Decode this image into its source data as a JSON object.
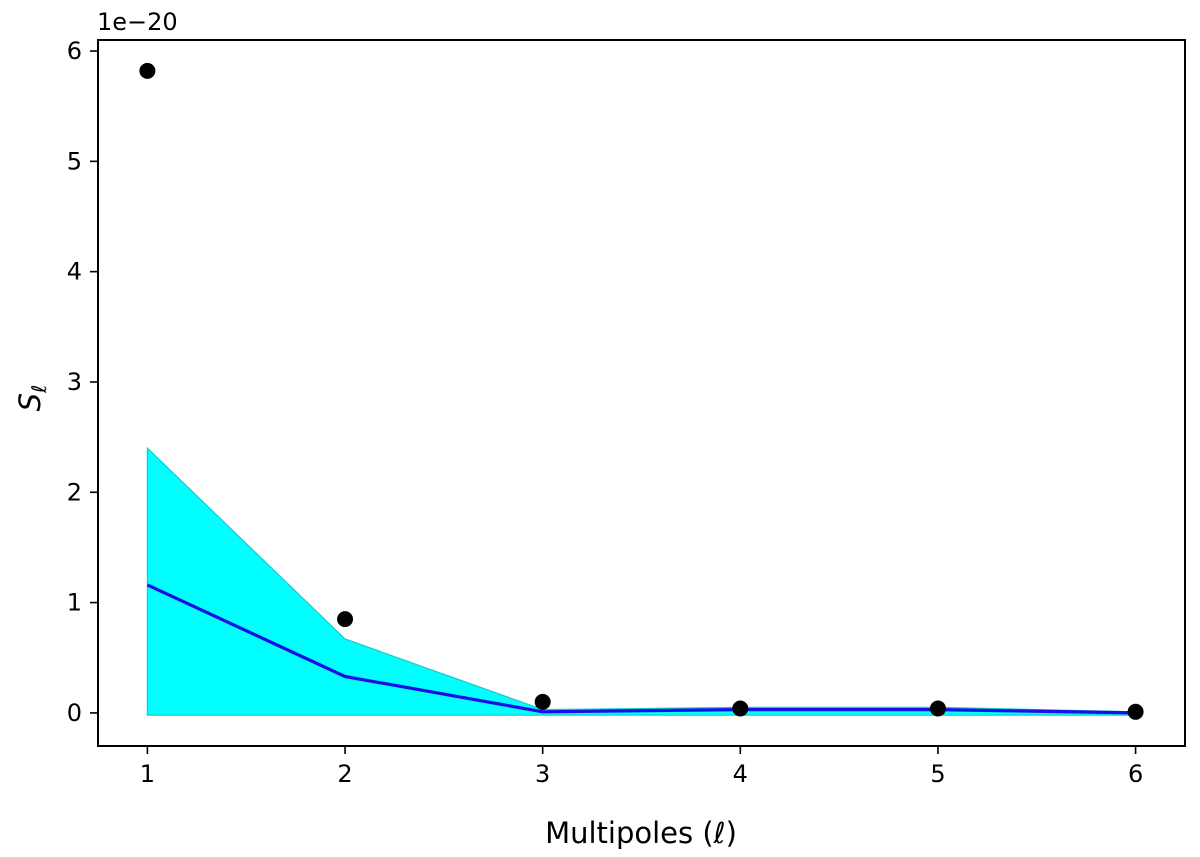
{
  "chart_data": {
    "type": "line",
    "x": [
      1,
      2,
      3,
      4,
      5,
      6
    ],
    "series": [
      {
        "kind": "points",
        "values": [
          5.82,
          0.85,
          0.1,
          0.04,
          0.04,
          0.01
        ],
        "color": "#000000"
      },
      {
        "kind": "line",
        "values": [
          1.16,
          0.33,
          0.01,
          0.03,
          0.03,
          0.0
        ],
        "color": "#1a0fe6"
      },
      {
        "kind": "band",
        "lower": [
          -0.02,
          -0.02,
          -0.02,
          -0.02,
          -0.02,
          -0.02
        ],
        "upper": [
          2.4,
          0.67,
          0.03,
          0.05,
          0.05,
          0.01
        ],
        "color": "#00ffff"
      }
    ],
    "xlabel": "Multipoles (ℓ)",
    "ylabel": "S",
    "ylabel_subscript": "ℓ",
    "y_offset_label": "1e−20",
    "xlim": [
      0.75,
      6.25
    ],
    "ylim": [
      -0.3,
      6.1
    ],
    "xticks": [
      "1",
      "2",
      "3",
      "4",
      "5",
      "6"
    ],
    "yticks": [
      "0",
      "1",
      "2",
      "3",
      "4",
      "5",
      "6"
    ],
    "grid": false,
    "legend": "none"
  }
}
